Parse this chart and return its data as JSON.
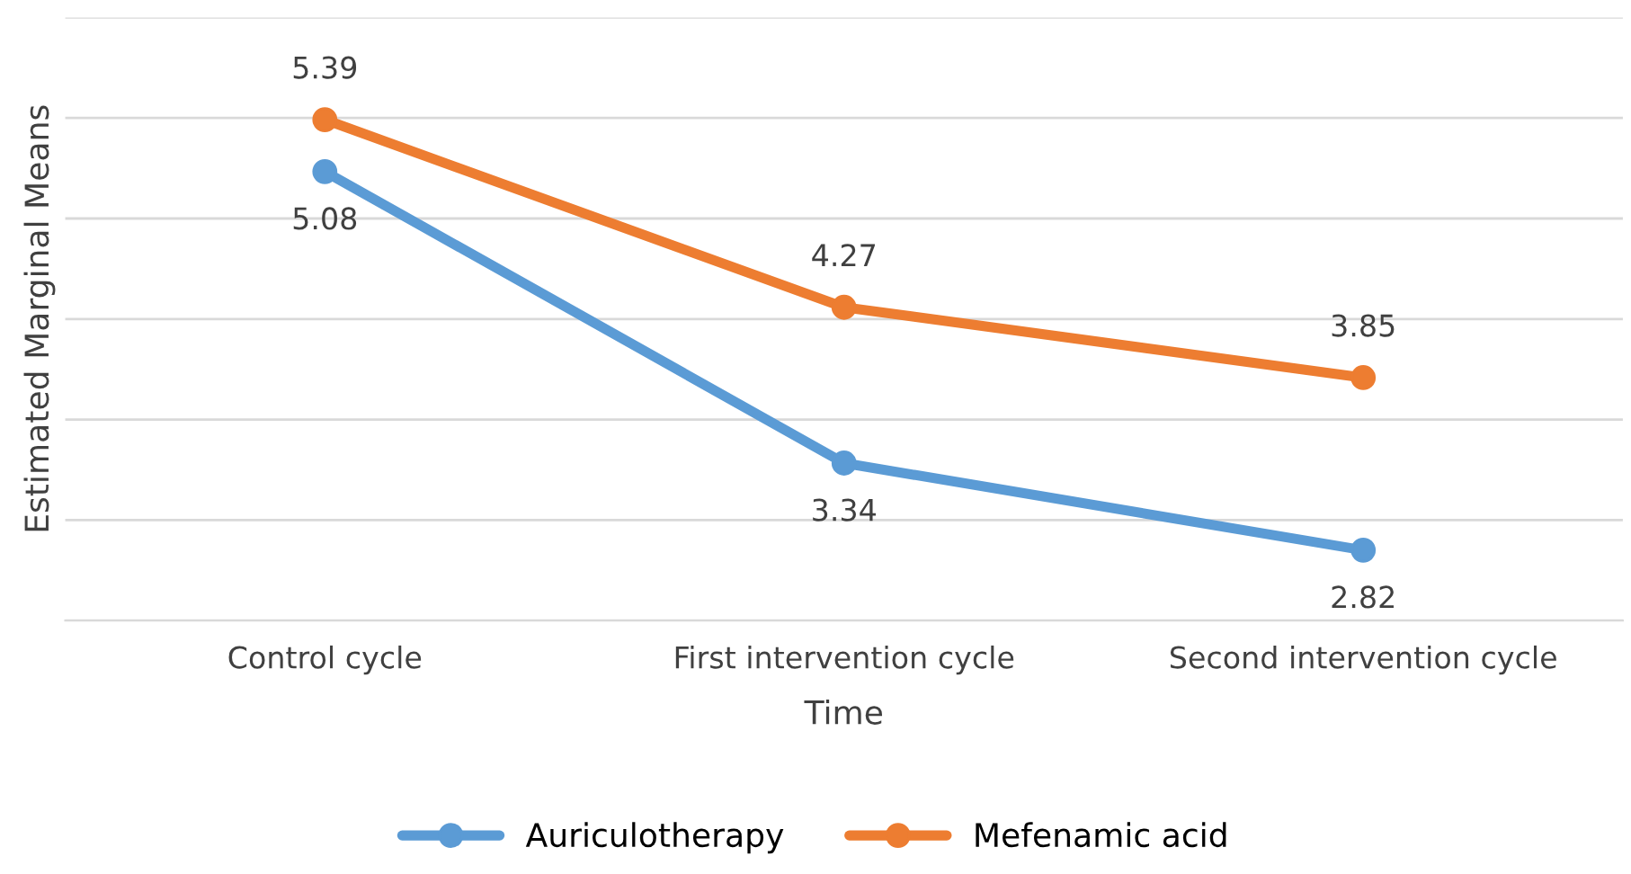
{
  "chart_data": {
    "type": "line",
    "xlabel": "Time",
    "ylabel": "Estimated Marginal Means",
    "categories": [
      "Control cycle",
      "First intervention cycle",
      "Second intervention cycle"
    ],
    "series": [
      {
        "name": "Auriculotherapy",
        "color": "#5b9bd5",
        "values": [
          5.08,
          3.34,
          2.82
        ]
      },
      {
        "name": "Mefenamic acid",
        "color": "#ed7d31",
        "values": [
          5.39,
          4.27,
          3.85
        ]
      }
    ],
    "ylim": [
      2.4,
      6.0
    ],
    "yticks": [
      {
        "value": 2.4,
        "label": null
      },
      {
        "value": 3.0,
        "label": null
      },
      {
        "value": 3.6,
        "label": null
      },
      {
        "value": 4.2,
        "label": null
      },
      {
        "value": 4.8,
        "label": null
      },
      {
        "value": 5.4,
        "label": null
      },
      {
        "value": 6.0,
        "label": null
      }
    ],
    "grid": "y",
    "legend": "bottom",
    "marker": "circle",
    "line_style": "solid",
    "data_labels": true,
    "tick_labels": "x"
  }
}
